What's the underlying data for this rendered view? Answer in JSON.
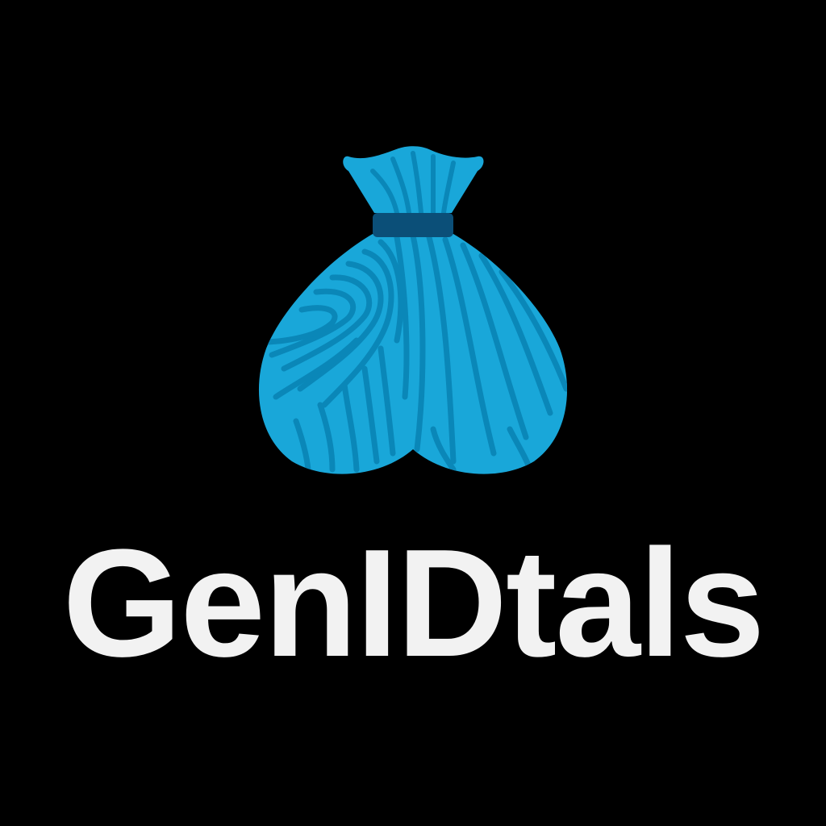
{
  "brand": {
    "name": "GenIDtals"
  },
  "logo": {
    "icon": "fingerprint-money-bag-icon"
  },
  "colors": {
    "background": "#000000",
    "bag_fill": "#19a7d9",
    "bag_lines": "#0a87b8",
    "bag_band": "#0b4f78",
    "wordmark": "#f2f2f2"
  }
}
